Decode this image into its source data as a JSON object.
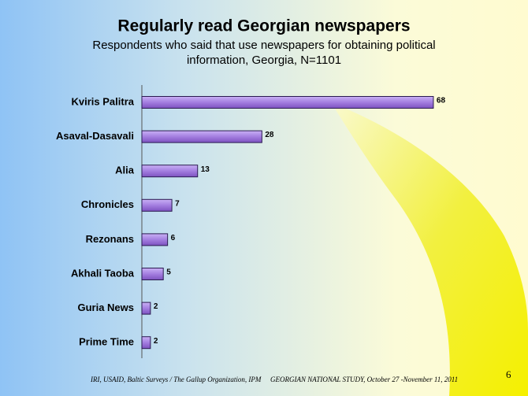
{
  "chart_data": {
    "type": "hbar",
    "title": "Regularly read Georgian newspapers",
    "subtitle": [
      "Respondents who said that use newspapers for obtaining political",
      "information, Georgia, N=1101"
    ],
    "categories": [
      "Kviris Palitra",
      "Asaval-Dasavali",
      "Alia",
      "Chronicles",
      "Rezonans",
      "Akhali Taoba",
      "Guria News",
      "Prime Time"
    ],
    "values": [
      68,
      28,
      13,
      7,
      6,
      5,
      2,
      2
    ],
    "color": "#a47ee0"
  },
  "footer": {
    "left": "IRI, USAID,  Baltic Surveys / The Gallup Organization, IPM",
    "right": "GEORGIAN NATIONAL STUDY, October 27 -November 11, 2011",
    "page_number": 6
  }
}
